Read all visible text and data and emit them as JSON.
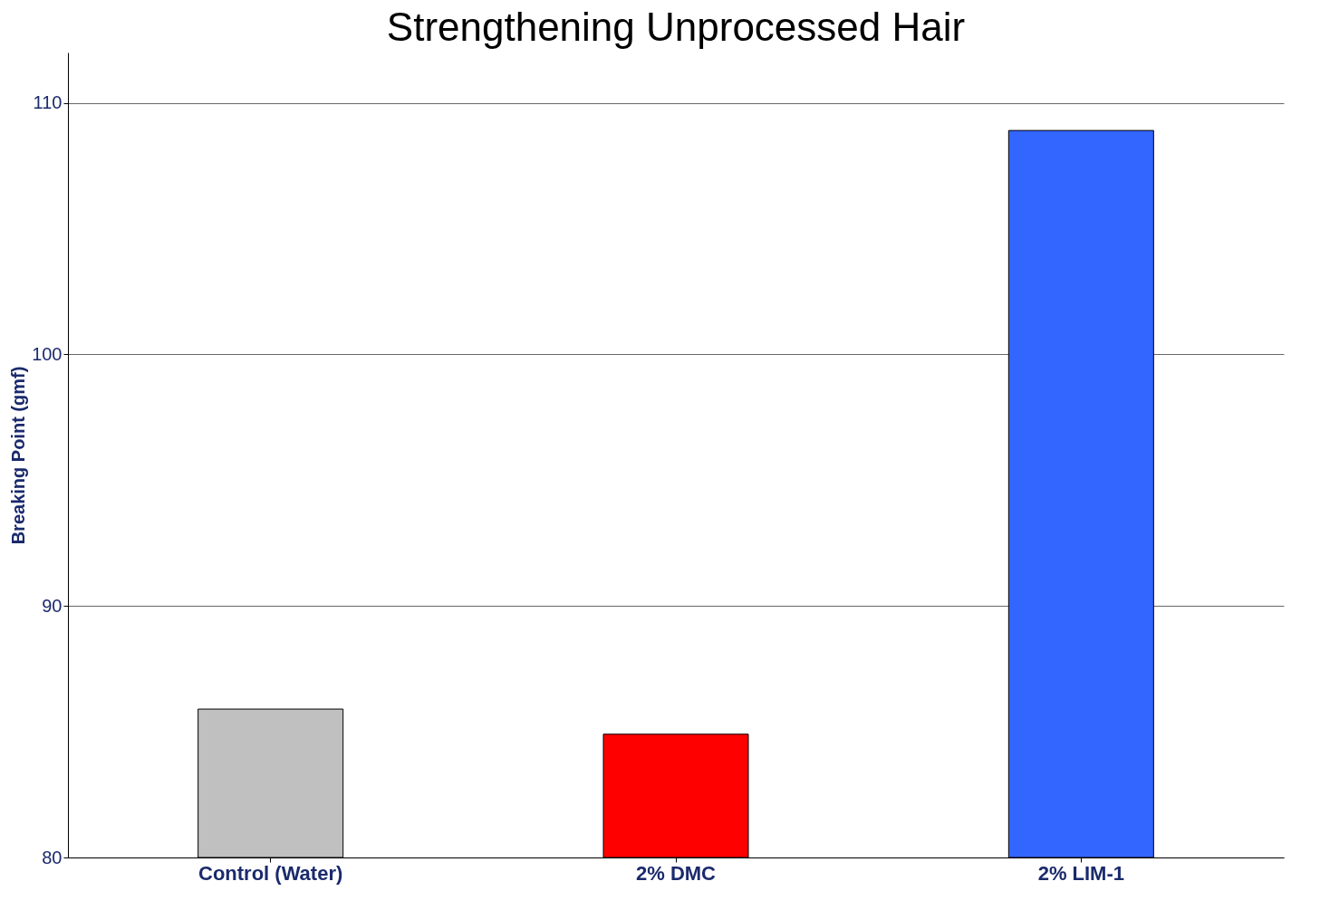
{
  "chart_data": {
    "type": "bar",
    "title": "Strengthening Unprocessed Hair",
    "ylabel": "Breaking Point (gmf)",
    "categories": [
      "Control (Water)",
      "2% DMC",
      "2% LIM-1"
    ],
    "values": [
      85.9,
      84.9,
      108.9
    ],
    "colors": [
      "#c0c0c0",
      "#ff0000",
      "#3366ff"
    ],
    "ylim": [
      80,
      112
    ],
    "yticks": [
      80,
      90,
      100,
      110
    ],
    "grid": "y"
  }
}
